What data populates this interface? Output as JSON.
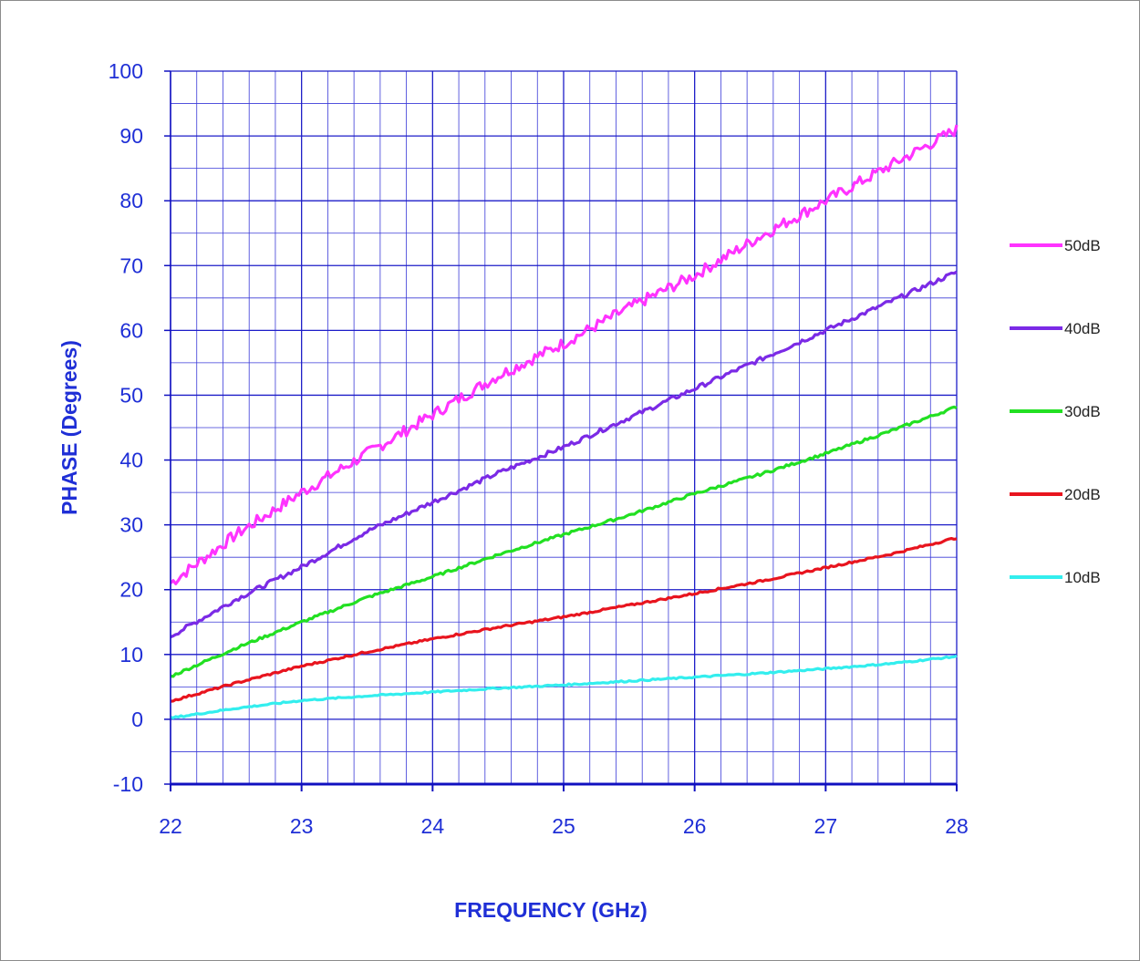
{
  "chart_data": {
    "type": "line",
    "title": "",
    "xlabel": "FREQUENCY (GHz)",
    "ylabel": "PHASE  (Degrees)",
    "xlim": [
      22,
      28
    ],
    "ylim": [
      -10,
      100
    ],
    "x_ticks": [
      "22",
      "23",
      "24",
      "25",
      "26",
      "27",
      "28"
    ],
    "y_ticks": [
      "-10",
      "0",
      "10",
      "20",
      "30",
      "40",
      "50",
      "60",
      "70",
      "80",
      "90",
      "100"
    ],
    "grid": true,
    "minor_grid": "x every 0.2 GHz, y every 5 degrees",
    "legend_position": "right",
    "x": [
      22,
      22.5,
      23,
      23.5,
      24,
      24.5,
      25,
      25.5,
      26,
      26.5,
      27,
      27.5,
      28
    ],
    "series": [
      {
        "name": "50dB",
        "color": "#ff33ff",
        "noise": 0.9,
        "values": [
          21,
          28.5,
          35,
          41,
          47,
          53,
          58,
          63.5,
          68.5,
          74.5,
          80,
          85.5,
          91
        ]
      },
      {
        "name": "40dB",
        "color": "#7b2ae6",
        "noise": 0.35,
        "values": [
          12.8,
          18.5,
          23.5,
          29,
          33.5,
          38,
          42,
          46.5,
          51,
          55.5,
          60,
          64.5,
          69
        ]
      },
      {
        "name": "30dB",
        "color": "#22e022",
        "noise": 0.2,
        "values": [
          6.6,
          11,
          15,
          18.8,
          22,
          25.4,
          28.5,
          31.5,
          34.8,
          37.8,
          41,
          44.5,
          48.2
        ]
      },
      {
        "name": "20dB",
        "color": "#e8141e",
        "noise": 0.15,
        "values": [
          2.8,
          5.6,
          8.2,
          10.4,
          12.4,
          14.2,
          15.8,
          17.6,
          19.4,
          21.3,
          23.4,
          25.5,
          28
        ]
      },
      {
        "name": "10dB",
        "color": "#33eeee",
        "noise": 0.12,
        "values": [
          0.2,
          1.7,
          2.9,
          3.6,
          4.2,
          4.8,
          5.3,
          5.9,
          6.5,
          7.1,
          7.8,
          8.6,
          9.7
        ]
      }
    ]
  }
}
